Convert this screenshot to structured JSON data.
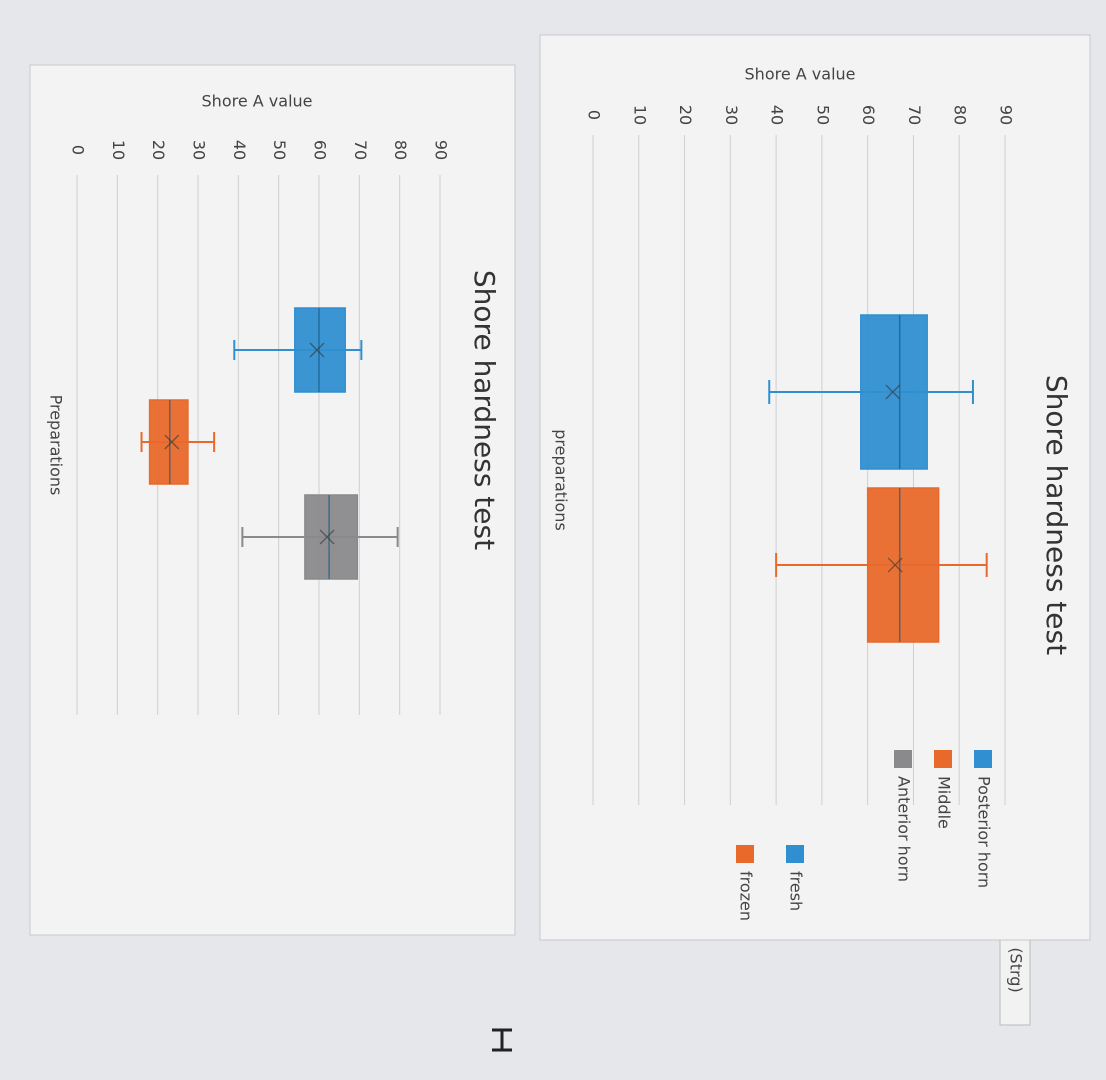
{
  "chart_data": [
    {
      "type": "box",
      "title": "Shore hardness test",
      "y_label": "Shore A value",
      "x_label": "preparations",
      "ylim": [
        0,
        90
      ],
      "yticks": [
        0,
        10,
        20,
        30,
        40,
        50,
        60,
        70,
        80,
        90
      ],
      "grid": true,
      "series": [
        {
          "name": "fresh",
          "color": "#2f8fd0",
          "min": 38.5,
          "q1": 58.5,
          "median": 67,
          "q3": 73,
          "max": 83,
          "mean": 65.5
        },
        {
          "name": "frozen",
          "color": "#e8692a",
          "min": 40,
          "q1": 60,
          "median": 67,
          "q3": 75.5,
          "max": 86,
          "mean": 66
        }
      ]
    },
    {
      "type": "box",
      "title": "Shore hardness test",
      "y_label": "Shore A value",
      "x_label": "Preparations",
      "ylim": [
        0,
        90
      ],
      "yticks": [
        0,
        10,
        20,
        30,
        40,
        50,
        60,
        70,
        80,
        90
      ],
      "grid": true,
      "series": [
        {
          "name": "Posterior horn",
          "color": "#2f8fd0",
          "min": 39,
          "q1": 54,
          "median": 60,
          "q3": 66.5,
          "max": 70.5,
          "mean": 59.5
        },
        {
          "name": "Middle",
          "color": "#e8692a",
          "min": 16,
          "q1": 18,
          "median": 23,
          "q3": 27.5,
          "max": 34,
          "mean": 23.5
        },
        {
          "name": "Anterior horn",
          "color": "#8a8a8c",
          "min": 41,
          "q1": 56.5,
          "median": 62.5,
          "q3": 69.5,
          "max": 79.5,
          "mean": 62
        }
      ]
    }
  ],
  "paste_button": "(Strg)"
}
